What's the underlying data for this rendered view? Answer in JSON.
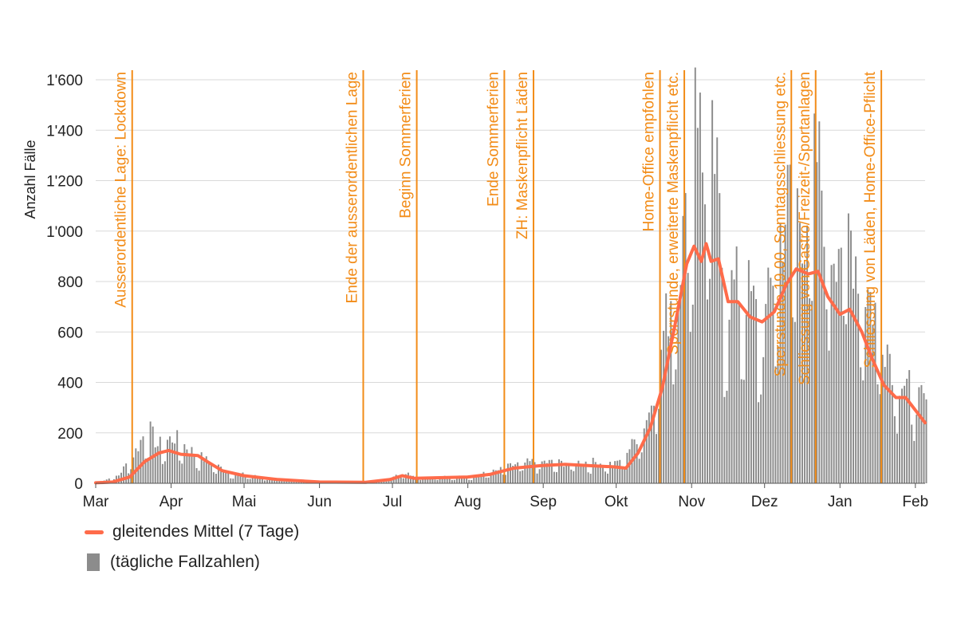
{
  "chart_data": {
    "type": "bar",
    "ylabel": "Anzahl Fälle",
    "ylim": [
      0,
      1600
    ],
    "y_ticks": [
      0,
      200,
      400,
      600,
      800,
      1000,
      1200,
      1400,
      1600
    ],
    "y_tick_labels": [
      "0",
      "200",
      "400",
      "600",
      "800",
      "1'000",
      "1'200",
      "1'400",
      "1'600"
    ],
    "x_start": "2020-03-01",
    "x_end": "2021-02-05",
    "x_ticks": [
      {
        "date": "2020-03-01",
        "label": "Mar"
      },
      {
        "date": "2020-04-01",
        "label": "Apr"
      },
      {
        "date": "2020-05-01",
        "label": "Mai"
      },
      {
        "date": "2020-06-01",
        "label": "Jun"
      },
      {
        "date": "2020-07-01",
        "label": "Jul"
      },
      {
        "date": "2020-08-01",
        "label": "Aug"
      },
      {
        "date": "2020-09-01",
        "label": "Sep"
      },
      {
        "date": "2020-10-01",
        "label": "Okt"
      },
      {
        "date": "2020-11-01",
        "label": "Nov"
      },
      {
        "date": "2020-12-01",
        "label": "Dez"
      },
      {
        "date": "2021-01-01",
        "label": "Jan"
      },
      {
        "date": "2021-02-01",
        "label": "Feb"
      }
    ],
    "series": [
      {
        "name": "(tägliche Fallzahlen)",
        "type": "bar",
        "color": "#8c8c8c",
        "anchors": [
          [
            "2020-03-01",
            2
          ],
          [
            "2020-03-10",
            30
          ],
          [
            "2020-03-17",
            120
          ],
          [
            "2020-03-22",
            210
          ],
          [
            "2020-03-26",
            140
          ],
          [
            "2020-04-02",
            170
          ],
          [
            "2020-04-09",
            120
          ],
          [
            "2020-04-16",
            80
          ],
          [
            "2020-04-25",
            40
          ],
          [
            "2020-05-10",
            20
          ],
          [
            "2020-05-25",
            8
          ],
          [
            "2020-06-15",
            5
          ],
          [
            "2020-06-28",
            15
          ],
          [
            "2020-07-04",
            40
          ],
          [
            "2020-07-15",
            22
          ],
          [
            "2020-08-01",
            25
          ],
          [
            "2020-08-12",
            45
          ],
          [
            "2020-08-20",
            70
          ],
          [
            "2020-08-28",
            80
          ],
          [
            "2020-09-10",
            75
          ],
          [
            "2020-09-20",
            80
          ],
          [
            "2020-09-30",
            70
          ],
          [
            "2020-10-07",
            140
          ],
          [
            "2020-10-14",
            260
          ],
          [
            "2020-10-20",
            550
          ],
          [
            "2020-10-25",
            800
          ],
          [
            "2020-10-31",
            1000
          ],
          [
            "2020-11-02",
            1640
          ],
          [
            "2020-11-05",
            1150
          ],
          [
            "2020-11-10",
            1200
          ],
          [
            "2020-11-14",
            700
          ],
          [
            "2020-11-22",
            750
          ],
          [
            "2020-11-30",
            550
          ],
          [
            "2020-12-06",
            900
          ],
          [
            "2020-12-12",
            1100
          ],
          [
            "2020-12-17",
            950
          ],
          [
            "2020-12-22",
            1210
          ],
          [
            "2020-12-28",
            900
          ],
          [
            "2021-01-04",
            950
          ],
          [
            "2021-01-10",
            750
          ],
          [
            "2021-01-17",
            600
          ],
          [
            "2021-01-24",
            400
          ],
          [
            "2021-01-31",
            330
          ],
          [
            "2021-02-05",
            280
          ]
        ]
      },
      {
        "name": "gleitendes Mittel (7 Tage)",
        "type": "line",
        "color": "#ff6b4a",
        "points": [
          [
            "2020-03-01",
            2
          ],
          [
            "2020-03-08",
            5
          ],
          [
            "2020-03-15",
            25
          ],
          [
            "2020-03-21",
            85
          ],
          [
            "2020-03-27",
            120
          ],
          [
            "2020-03-31",
            130
          ],
          [
            "2020-04-05",
            115
          ],
          [
            "2020-04-12",
            110
          ],
          [
            "2020-04-16",
            85
          ],
          [
            "2020-04-22",
            50
          ],
          [
            "2020-05-01",
            30
          ],
          [
            "2020-05-15",
            15
          ],
          [
            "2020-06-01",
            5
          ],
          [
            "2020-06-20",
            4
          ],
          [
            "2020-06-30",
            15
          ],
          [
            "2020-07-05",
            30
          ],
          [
            "2020-07-10",
            20
          ],
          [
            "2020-08-01",
            25
          ],
          [
            "2020-08-10",
            35
          ],
          [
            "2020-08-20",
            60
          ],
          [
            "2020-08-31",
            70
          ],
          [
            "2020-09-10",
            75
          ],
          [
            "2020-09-20",
            70
          ],
          [
            "2020-09-30",
            65
          ],
          [
            "2020-10-05",
            60
          ],
          [
            "2020-10-10",
            120
          ],
          [
            "2020-10-15",
            220
          ],
          [
            "2020-10-20",
            380
          ],
          [
            "2020-10-25",
            620
          ],
          [
            "2020-10-30",
            870
          ],
          [
            "2020-11-02",
            940
          ],
          [
            "2020-11-05",
            880
          ],
          [
            "2020-11-07",
            950
          ],
          [
            "2020-11-09",
            880
          ],
          [
            "2020-11-12",
            890
          ],
          [
            "2020-11-16",
            720
          ],
          [
            "2020-11-20",
            720
          ],
          [
            "2020-11-25",
            660
          ],
          [
            "2020-11-30",
            640
          ],
          [
            "2020-12-05",
            680
          ],
          [
            "2020-12-10",
            790
          ],
          [
            "2020-12-14",
            850
          ],
          [
            "2020-12-19",
            830
          ],
          [
            "2020-12-23",
            840
          ],
          [
            "2020-12-27",
            740
          ],
          [
            "2021-01-01",
            670
          ],
          [
            "2021-01-05",
            690
          ],
          [
            "2021-01-10",
            600
          ],
          [
            "2021-01-14",
            500
          ],
          [
            "2021-01-19",
            390
          ],
          [
            "2021-01-24",
            340
          ],
          [
            "2021-01-28",
            340
          ],
          [
            "2021-02-01",
            290
          ],
          [
            "2021-02-05",
            240
          ]
        ]
      }
    ],
    "events": [
      {
        "date": "2020-03-16",
        "label": "Ausserordentliche Lage: Lockdown"
      },
      {
        "date": "2020-06-19",
        "label": "Ende der ausserordentlichen Lage"
      },
      {
        "date": "2020-07-11",
        "label": "Beginn Sommerferien"
      },
      {
        "date": "2020-08-16",
        "label": "Ende Sommerferien"
      },
      {
        "date": "2020-08-28",
        "label": "ZH: Maskenpflicht Läden"
      },
      {
        "date": "2020-10-19",
        "label": "Home-Office empfohlen"
      },
      {
        "date": "2020-10-29",
        "label": "Sperrstunde, erweiterte Maskenpflicht etc."
      },
      {
        "date": "2020-12-12",
        "label": "Sperrstunde 19.00, Sonntagsschliessung etc."
      },
      {
        "date": "2020-12-22",
        "label": "Schliessung von Gastro/Freizeit-/Sportanlagen"
      },
      {
        "date": "2021-01-18",
        "label": "Schliessung von Läden, Home-Office-Pflicht"
      }
    ],
    "grid": true,
    "legend_position": "bottom-left",
    "legend": [
      {
        "label": "gleitendes Mittel (7 Tage)",
        "type": "line",
        "color": "#ff6b4a"
      },
      {
        "label": "(tägliche Fallzahlen)",
        "type": "bar",
        "color": "#8c8c8c"
      }
    ],
    "event_line_color": "#f28c18"
  }
}
